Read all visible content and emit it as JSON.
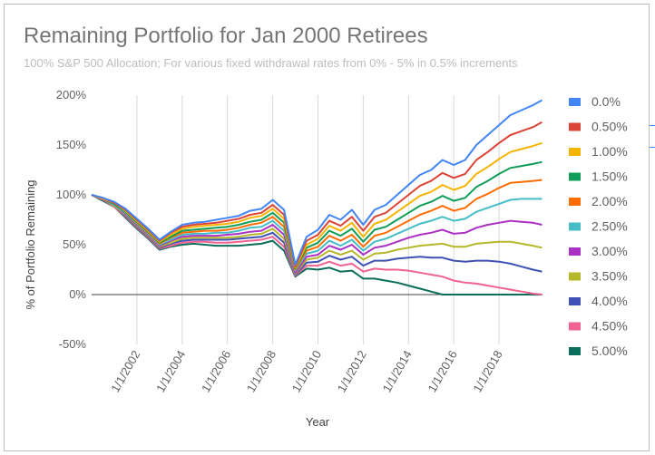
{
  "chart_data": {
    "type": "line",
    "title": "Remaining Portfolio for Jan 2000 Retirees",
    "subtitle": "100% S&P 500 Allocation; For various fixed withdrawal rates from 0% - 5% in 0.5% increments",
    "xlabel": "Year",
    "ylabel": "% of Portfolio Remaining",
    "xlim": [
      2000.0,
      2019.92
    ],
    "ylim": [
      -50,
      200
    ],
    "x_ticks": [
      2002,
      2004,
      2006,
      2008,
      2010,
      2012,
      2014,
      2016,
      2018
    ],
    "x_tick_labels": [
      "1/1/2002",
      "1/1/2004",
      "1/1/2006",
      "1/1/2008",
      "1/1/2010",
      "1/1/2012",
      "1/1/2014",
      "1/1/2016",
      "1/1/2018"
    ],
    "y_ticks": [
      -50,
      0,
      50,
      100,
      150,
      200
    ],
    "y_tick_labels": [
      "-50%",
      "0%",
      "50%",
      "100%",
      "150%",
      "200%"
    ],
    "grid": "vertical",
    "legend_position": "right",
    "x": [
      2000.0,
      2000.5,
      2001.0,
      2001.5,
      2002.0,
      2002.5,
      2003.0,
      2003.5,
      2004.0,
      2004.5,
      2005.0,
      2005.5,
      2006.0,
      2006.5,
      2007.0,
      2007.5,
      2008.0,
      2008.5,
      2009.0,
      2009.5,
      2010.0,
      2010.5,
      2011.0,
      2011.5,
      2012.0,
      2012.5,
      2013.0,
      2013.5,
      2014.0,
      2014.5,
      2015.0,
      2015.5,
      2016.0,
      2016.5,
      2017.0,
      2017.5,
      2018.0,
      2018.5,
      2019.0,
      2019.5,
      2019.9
    ],
    "series": [
      {
        "name": "0.0%",
        "color": "#4285f4",
        "values": [
          100,
          97,
          93,
          86,
          76,
          66,
          55,
          63,
          70,
          72,
          73,
          75,
          77,
          79,
          84,
          86,
          95,
          85,
          30,
          58,
          65,
          80,
          75,
          85,
          70,
          85,
          90,
          100,
          110,
          120,
          125,
          135,
          130,
          135,
          150,
          160,
          170,
          180,
          185,
          190,
          195
        ]
      },
      {
        "name": "0.50%",
        "color": "#db4437",
        "values": [
          100,
          97,
          92,
          85,
          75,
          65,
          54,
          62,
          68,
          70,
          71,
          72,
          74,
          76,
          80,
          82,
          90,
          80,
          28,
          54,
          60,
          74,
          69,
          78,
          64,
          78,
          82,
          91,
          100,
          109,
          114,
          122,
          117,
          121,
          135,
          143,
          152,
          160,
          164,
          168,
          173
        ]
      },
      {
        "name": "1.00%",
        "color": "#f4b400",
        "values": [
          100,
          96,
          92,
          84,
          74,
          64,
          53,
          60,
          66,
          68,
          69,
          70,
          71,
          73,
          77,
          79,
          86,
          76,
          27,
          50,
          56,
          69,
          64,
          72,
          58,
          71,
          75,
          83,
          91,
          99,
          103,
          110,
          105,
          109,
          121,
          128,
          136,
          143,
          146,
          149,
          152
        ]
      },
      {
        "name": "1.50%",
        "color": "#0f9d58",
        "values": [
          100,
          96,
          91,
          83,
          73,
          63,
          52,
          58,
          64,
          65,
          66,
          67,
          68,
          70,
          73,
          75,
          82,
          72,
          26,
          47,
          52,
          64,
          59,
          66,
          53,
          65,
          68,
          75,
          82,
          89,
          93,
          99,
          94,
          97,
          108,
          114,
          121,
          127,
          129,
          131,
          133
        ]
      },
      {
        "name": "2.00%",
        "color": "#ff6d01",
        "values": [
          100,
          96,
          91,
          83,
          72,
          62,
          51,
          57,
          62,
          63,
          64,
          64,
          65,
          67,
          70,
          72,
          78,
          68,
          25,
          44,
          48,
          59,
          54,
          60,
          48,
          59,
          62,
          68,
          74,
          80,
          84,
          89,
          84,
          87,
          96,
          101,
          107,
          112,
          113,
          114,
          115
        ]
      },
      {
        "name": "2.50%",
        "color": "#46bdc6",
        "values": [
          100,
          96,
          90,
          82,
          71,
          61,
          50,
          55,
          60,
          61,
          61,
          62,
          62,
          64,
          67,
          68,
          74,
          64,
          24,
          41,
          44,
          54,
          49,
          55,
          44,
          53,
          56,
          61,
          66,
          71,
          74,
          78,
          74,
          76,
          83,
          87,
          91,
          95,
          96,
          96,
          96
        ]
      },
      {
        "name": "3.00%",
        "color": "#ab30c4",
        "values": [
          100,
          95,
          90,
          81,
          70,
          60,
          49,
          54,
          58,
          59,
          59,
          59,
          60,
          61,
          63,
          64,
          70,
          60,
          22,
          38,
          40,
          49,
          45,
          50,
          40,
          47,
          49,
          53,
          57,
          60,
          62,
          65,
          61,
          62,
          67,
          70,
          72,
          74,
          73,
          72,
          70
        ]
      },
      {
        "name": "3.50%",
        "color": "#b5b82a",
        "values": [
          100,
          95,
          89,
          80,
          69,
          59,
          48,
          52,
          56,
          57,
          57,
          57,
          57,
          58,
          60,
          61,
          66,
          56,
          21,
          35,
          37,
          44,
          40,
          44,
          35,
          41,
          42,
          45,
          47,
          49,
          50,
          51,
          48,
          48,
          51,
          52,
          53,
          53,
          51,
          49,
          47
        ]
      },
      {
        "name": "4.00%",
        "color": "#3f51b5",
        "values": [
          100,
          95,
          89,
          79,
          68,
          58,
          47,
          51,
          54,
          55,
          55,
          55,
          55,
          56,
          57,
          58,
          62,
          52,
          20,
          32,
          33,
          39,
          35,
          38,
          29,
          34,
          34,
          36,
          37,
          38,
          37,
          37,
          34,
          33,
          34,
          34,
          33,
          31,
          28,
          25,
          23
        ]
      },
      {
        "name": "4.50%",
        "color": "#f06292",
        "values": [
          100,
          95,
          88,
          78,
          67,
          57,
          46,
          49,
          52,
          53,
          53,
          52,
          52,
          53,
          54,
          55,
          58,
          48,
          19,
          29,
          29,
          33,
          29,
          31,
          23,
          26,
          25,
          25,
          24,
          22,
          20,
          18,
          14,
          12,
          11,
          9,
          7,
          5,
          3,
          1,
          0
        ]
      },
      {
        "name": "5.00%",
        "color": "#0b6e5a",
        "values": [
          100,
          94,
          88,
          77,
          66,
          56,
          45,
          48,
          50,
          51,
          50,
          49,
          49,
          49,
          50,
          51,
          54,
          44,
          18,
          26,
          25,
          27,
          23,
          24,
          16,
          16,
          14,
          12,
          9,
          6,
          3,
          0,
          0,
          0,
          0,
          0,
          0,
          0,
          0,
          0,
          0
        ]
      }
    ]
  }
}
